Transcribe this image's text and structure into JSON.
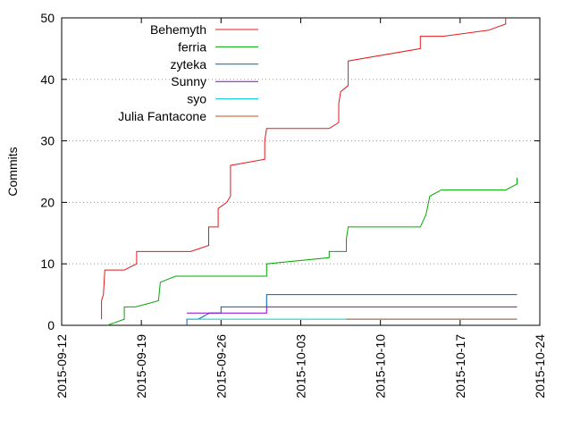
{
  "chart_data": {
    "type": "line",
    "ylabel": "Commits",
    "xlabel": "",
    "title": "",
    "ylim": [
      0,
      50
    ],
    "xlim": [
      "2015-09-12",
      "2015-10-24"
    ],
    "yticks": [
      0,
      10,
      20,
      30,
      40,
      50
    ],
    "xticks": [
      "2015-09-12",
      "2015-09-19",
      "2015-09-26",
      "2015-10-03",
      "2015-10-10",
      "2015-10-17",
      "2015-10-24"
    ],
    "grid": "horizontal dotted",
    "legend_position": "top-left",
    "series": [
      {
        "name": "Behemyth",
        "color": "#e41a1c",
        "points": [
          [
            "2015-09-15T12:00",
            1
          ],
          [
            "2015-09-15T12:00",
            4
          ],
          [
            "2015-09-15T16:00",
            5
          ],
          [
            "2015-09-15T19:00",
            9
          ],
          [
            "2015-09-17T12:00",
            9
          ],
          [
            "2015-09-18T14:00",
            10
          ],
          [
            "2015-09-18T14:00",
            12
          ],
          [
            "2015-09-23T08:00",
            12
          ],
          [
            "2015-09-24T22:00",
            13
          ],
          [
            "2015-09-24T22:00",
            16
          ],
          [
            "2015-09-25T18:00",
            16
          ],
          [
            "2015-09-25T18:00",
            19
          ],
          [
            "2015-09-26T12:00",
            20
          ],
          [
            "2015-09-26T20:00",
            21
          ],
          [
            "2015-09-26T20:00",
            26
          ],
          [
            "2015-09-29T20:00",
            27
          ],
          [
            "2015-09-29T20:00",
            30
          ],
          [
            "2015-09-30T00:00",
            32
          ],
          [
            "2015-10-05T12:00",
            32
          ],
          [
            "2015-10-06T08:00",
            33
          ],
          [
            "2015-10-06T08:00",
            36
          ],
          [
            "2015-10-06T12:00",
            38
          ],
          [
            "2015-10-07T04:00",
            39
          ],
          [
            "2015-10-07T04:00",
            43
          ],
          [
            "2015-10-13T12:00",
            45
          ],
          [
            "2015-10-13T12:00",
            47
          ],
          [
            "2015-10-15T12:00",
            47
          ],
          [
            "2015-10-19T12:00",
            48
          ],
          [
            "2015-10-21T00:00",
            49
          ],
          [
            "2015-10-21T00:00",
            50
          ]
        ]
      },
      {
        "name": "ferria",
        "color": "#00aa00",
        "points": [
          [
            "2015-09-16T00:00",
            0
          ],
          [
            "2015-09-17T12:00",
            1
          ],
          [
            "2015-09-17T12:00",
            3
          ],
          [
            "2015-09-18T12:00",
            3
          ],
          [
            "2015-09-20T12:00",
            4
          ],
          [
            "2015-09-20T16:00",
            7
          ],
          [
            "2015-09-22T00:00",
            8
          ],
          [
            "2015-09-30T00:00",
            8
          ],
          [
            "2015-09-30T00:00",
            10
          ],
          [
            "2015-10-05T12:00",
            11
          ],
          [
            "2015-10-05T12:00",
            12
          ],
          [
            "2015-10-07T00:00",
            12
          ],
          [
            "2015-10-07T00:00",
            14
          ],
          [
            "2015-10-07T04:00",
            16
          ],
          [
            "2015-10-13T12:00",
            16
          ],
          [
            "2015-10-14T00:00",
            18
          ],
          [
            "2015-10-14T08:00",
            21
          ],
          [
            "2015-10-15T08:00",
            22
          ],
          [
            "2015-10-21T00:00",
            22
          ],
          [
            "2015-10-22T00:00",
            23
          ],
          [
            "2015-10-22T00:00",
            24
          ]
        ]
      },
      {
        "name": "zyteka",
        "color": "#0060ad",
        "points": [
          [
            "2015-09-23T00:00",
            0
          ],
          [
            "2015-09-23T00:00",
            1
          ],
          [
            "2015-09-24T00:00",
            1
          ],
          [
            "2015-09-25T00:00",
            2
          ],
          [
            "2015-09-26T00:00",
            2
          ],
          [
            "2015-09-26T00:00",
            3
          ],
          [
            "2015-09-30T00:00",
            3
          ],
          [
            "2015-09-30T00:00",
            5
          ],
          [
            "2015-10-22T00:00",
            5
          ]
        ]
      },
      {
        "name": "Sunny",
        "color": "#9400d3",
        "points": [
          [
            "2015-09-23T00:00",
            2
          ],
          [
            "2015-09-30T00:00",
            2
          ],
          [
            "2015-09-30T00:00",
            3
          ],
          [
            "2015-10-22T00:00",
            3
          ]
        ]
      },
      {
        "name": "syo",
        "color": "#00c8d8",
        "points": [
          [
            "2015-09-23T00:00",
            1
          ],
          [
            "2015-10-22T00:00",
            1
          ]
        ]
      },
      {
        "name": "Julia Fantacone",
        "color": "#c8501e",
        "points": [
          [
            "2015-10-07T00:00",
            1
          ],
          [
            "2015-10-22T00:00",
            1
          ]
        ]
      }
    ]
  }
}
